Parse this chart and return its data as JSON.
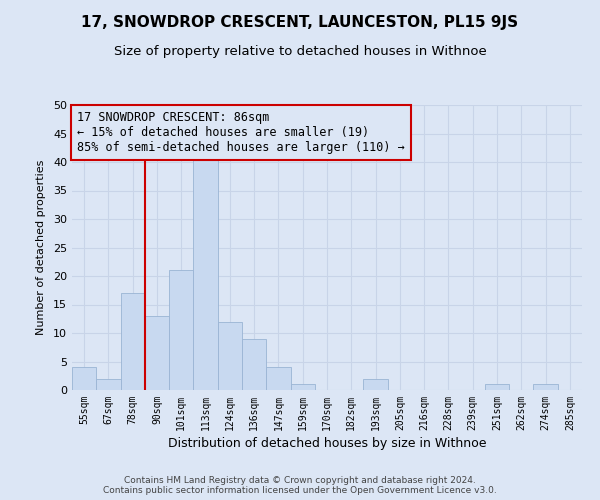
{
  "title": "17, SNOWDROP CRESCENT, LAUNCESTON, PL15 9JS",
  "subtitle": "Size of property relative to detached houses in Withnoe",
  "xlabel": "Distribution of detached houses by size in Withnoe",
  "ylabel": "Number of detached properties",
  "footer_lines": [
    "Contains HM Land Registry data © Crown copyright and database right 2024.",
    "Contains public sector information licensed under the Open Government Licence v3.0."
  ],
  "bin_labels": [
    "55sqm",
    "67sqm",
    "78sqm",
    "90sqm",
    "101sqm",
    "113sqm",
    "124sqm",
    "136sqm",
    "147sqm",
    "159sqm",
    "170sqm",
    "182sqm",
    "193sqm",
    "205sqm",
    "216sqm",
    "228sqm",
    "239sqm",
    "251sqm",
    "262sqm",
    "274sqm",
    "285sqm"
  ],
  "bar_values": [
    4,
    2,
    17,
    13,
    21,
    41,
    12,
    9,
    4,
    1,
    0,
    0,
    2,
    0,
    0,
    0,
    0,
    1,
    0,
    1,
    0
  ],
  "bar_color": "#c8d9f0",
  "bar_edge_color": "#9ab4d4",
  "grid_color": "#c8d4e8",
  "background_color": "#dce6f5",
  "plot_bg_color": "#dce6f5",
  "annotation_text": "17 SNOWDROP CRESCENT: 86sqm\n← 15% of detached houses are smaller (19)\n85% of semi-detached houses are larger (110) →",
  "annotation_box_edge": "#cc0000",
  "property_line_color": "#cc0000",
  "ylim": [
    0,
    50
  ],
  "yticks": [
    0,
    5,
    10,
    15,
    20,
    25,
    30,
    35,
    40,
    45,
    50
  ],
  "title_fontsize": 11,
  "subtitle_fontsize": 9.5,
  "annotation_fontsize": 8.5,
  "ylabel_fontsize": 8,
  "xlabel_fontsize": 9
}
